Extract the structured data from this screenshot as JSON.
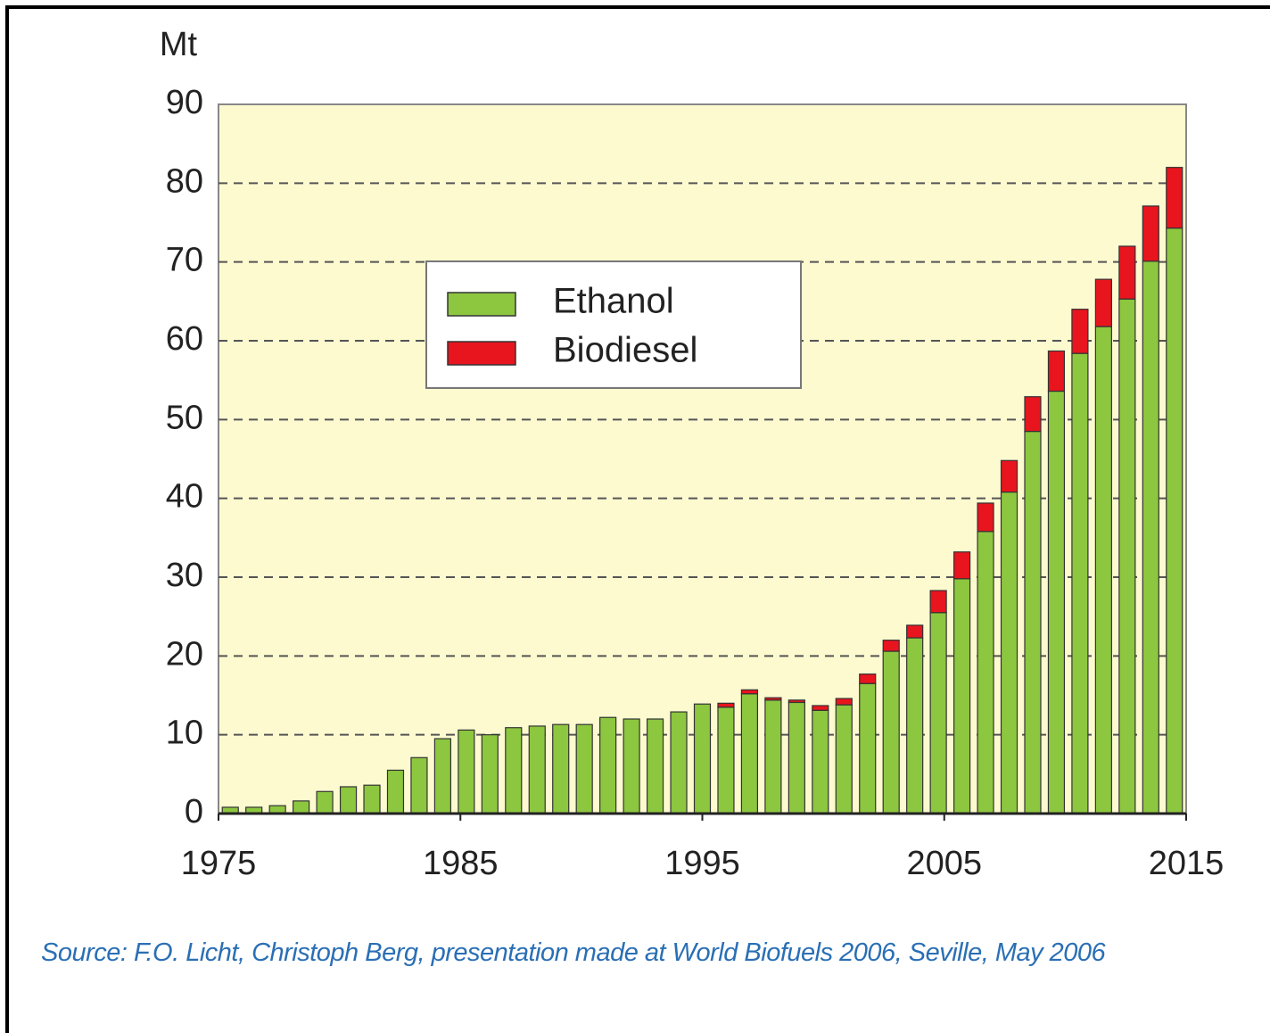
{
  "chart_data": {
    "type": "stacked-bar",
    "y_label": "Mt",
    "x": [
      1975,
      1976,
      1977,
      1978,
      1979,
      1980,
      1981,
      1982,
      1983,
      1984,
      1985,
      1986,
      1987,
      1988,
      1989,
      1990,
      1991,
      1992,
      1993,
      1994,
      1995,
      1996,
      1997,
      1998,
      1999,
      2000,
      2001,
      2002,
      2003,
      2004,
      2005,
      2006,
      2007,
      2008,
      2009,
      2010,
      2011,
      2012,
      2013,
      2014,
      2015
    ],
    "series": [
      {
        "name": "Ethanol",
        "color": "#8dc63f",
        "values": [
          0.8,
          0.8,
          1.0,
          1.6,
          2.8,
          3.4,
          3.6,
          5.5,
          7.1,
          9.5,
          10.6,
          10.0,
          10.9,
          11.1,
          11.3,
          11.3,
          12.2,
          12.0,
          12.0,
          12.9,
          13.9,
          13.5,
          15.2,
          14.4,
          14.1,
          13.1,
          13.8,
          16.5,
          20.6,
          22.3,
          25.5,
          29.8,
          35.8,
          40.8,
          48.5,
          53.6,
          58.4,
          61.8,
          65.3,
          70.1,
          74.3
        ]
      },
      {
        "name": "Biodiesel",
        "color": "#e8141e",
        "values": [
          0,
          0,
          0,
          0,
          0,
          0,
          0,
          0,
          0,
          0,
          0,
          0,
          0,
          0,
          0,
          0,
          0,
          0,
          0,
          0,
          0,
          0.5,
          0.5,
          0.3,
          0.3,
          0.6,
          0.8,
          1.2,
          1.4,
          1.6,
          2.8,
          3.4,
          3.6,
          4.0,
          4.4,
          5.1,
          5.6,
          6.0,
          6.7,
          7.0,
          7.7
        ]
      }
    ],
    "xlim": [
      1975,
      2015
    ],
    "xticks": [
      1975,
      1985,
      1995,
      2005,
      2015
    ],
    "ylim": [
      0,
      90
    ],
    "yticks": [
      0,
      10,
      20,
      30,
      40,
      50,
      60,
      70,
      80,
      90
    ],
    "grid": true,
    "legend": "upper-left",
    "source": "Source: F.O. Licht, Christoph Berg, presentation made at World Biofuels 2006, Seville, May 2006"
  }
}
